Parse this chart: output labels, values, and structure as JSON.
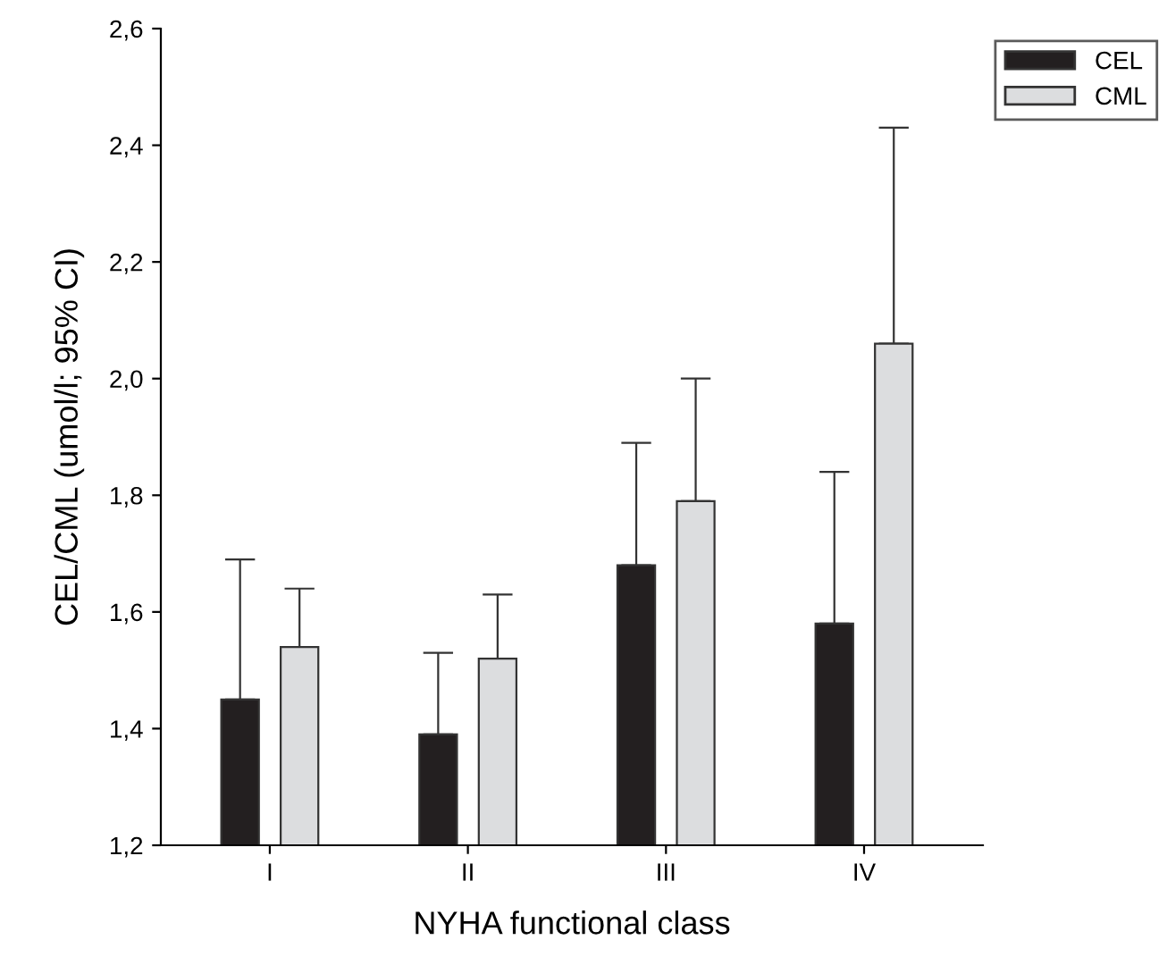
{
  "chart_data": {
    "type": "bar",
    "xlabel": "NYHA functional class",
    "ylabel": "CEL/CML (umol/l; 95% CI)",
    "categories": [
      "I",
      "II",
      "III",
      "IV"
    ],
    "series": [
      {
        "name": "CEL",
        "color": "#231f20",
        "values": [
          1.45,
          1.39,
          1.68,
          1.58
        ],
        "errors": [
          [
            1.45,
            1.69
          ],
          [
            1.39,
            1.53
          ],
          [
            1.68,
            1.89
          ],
          [
            1.58,
            1.84
          ]
        ]
      },
      {
        "name": "CML",
        "color": "#dcdddf",
        "values": [
          1.54,
          1.52,
          1.79,
          2.06
        ],
        "errors": [
          [
            1.54,
            1.64
          ],
          [
            1.52,
            1.63
          ],
          [
            1.79,
            2.0
          ],
          [
            2.06,
            2.43
          ]
        ]
      }
    ],
    "ylim": [
      1.2,
      2.6
    ],
    "yticks": [
      {
        "value": 1.2,
        "label": "1,2"
      },
      {
        "value": 1.4,
        "label": "1,4"
      },
      {
        "value": 1.6,
        "label": "1,6"
      },
      {
        "value": 1.8,
        "label": "1,8"
      },
      {
        "value": 2.0,
        "label": "2,0"
      },
      {
        "value": 2.2,
        "label": "2,2"
      },
      {
        "value": 2.4,
        "label": "2,4"
      },
      {
        "value": 2.6,
        "label": "2,6"
      }
    ],
    "grid": false,
    "legend": "top right"
  }
}
